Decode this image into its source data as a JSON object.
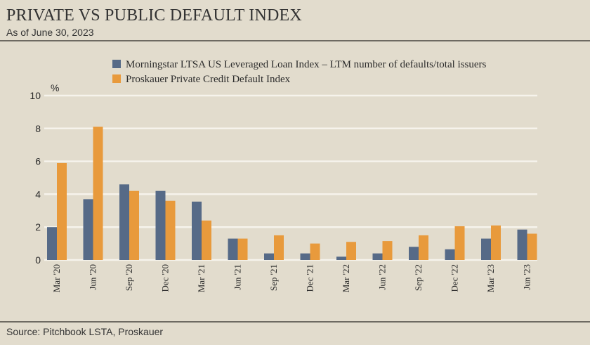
{
  "header": {
    "title": "PRIVATE VS PUBLIC DEFAULT INDEX",
    "subtitle": "As of June 30, 2023"
  },
  "footer": {
    "source": "Source: Pitchbook LSTA, Proskauer"
  },
  "chart_data": {
    "type": "bar",
    "ylabel": "%",
    "ylim": [
      0,
      10
    ],
    "yticks": [
      0,
      2,
      4,
      6,
      8,
      10
    ],
    "grid": true,
    "legend_position": "top",
    "categories": [
      "Mar '20",
      "Jun '20",
      "Sep '20",
      "Dec '20",
      "Mar '21",
      "Jun '21",
      "Sep '21",
      "Dec '21",
      "Mar '22",
      "Jun '22",
      "Sep '22",
      "Dec '22",
      "Mar '23",
      "Jun '23"
    ],
    "series": [
      {
        "name": "Morningstar LTSA US Leveraged Loan Index – LTM number of defaults/total issuers",
        "color": "#566a87",
        "values": [
          2.0,
          3.7,
          4.6,
          4.2,
          3.55,
          1.3,
          0.4,
          0.4,
          0.2,
          0.4,
          0.8,
          0.65,
          1.3,
          1.85
        ]
      },
      {
        "name": "Proskauer Private Credit Default Index",
        "color": "#e89a3c",
        "values": [
          5.9,
          8.1,
          4.2,
          3.6,
          2.4,
          1.3,
          1.5,
          1.0,
          1.1,
          1.15,
          1.5,
          2.05,
          2.1,
          1.6
        ]
      }
    ]
  }
}
